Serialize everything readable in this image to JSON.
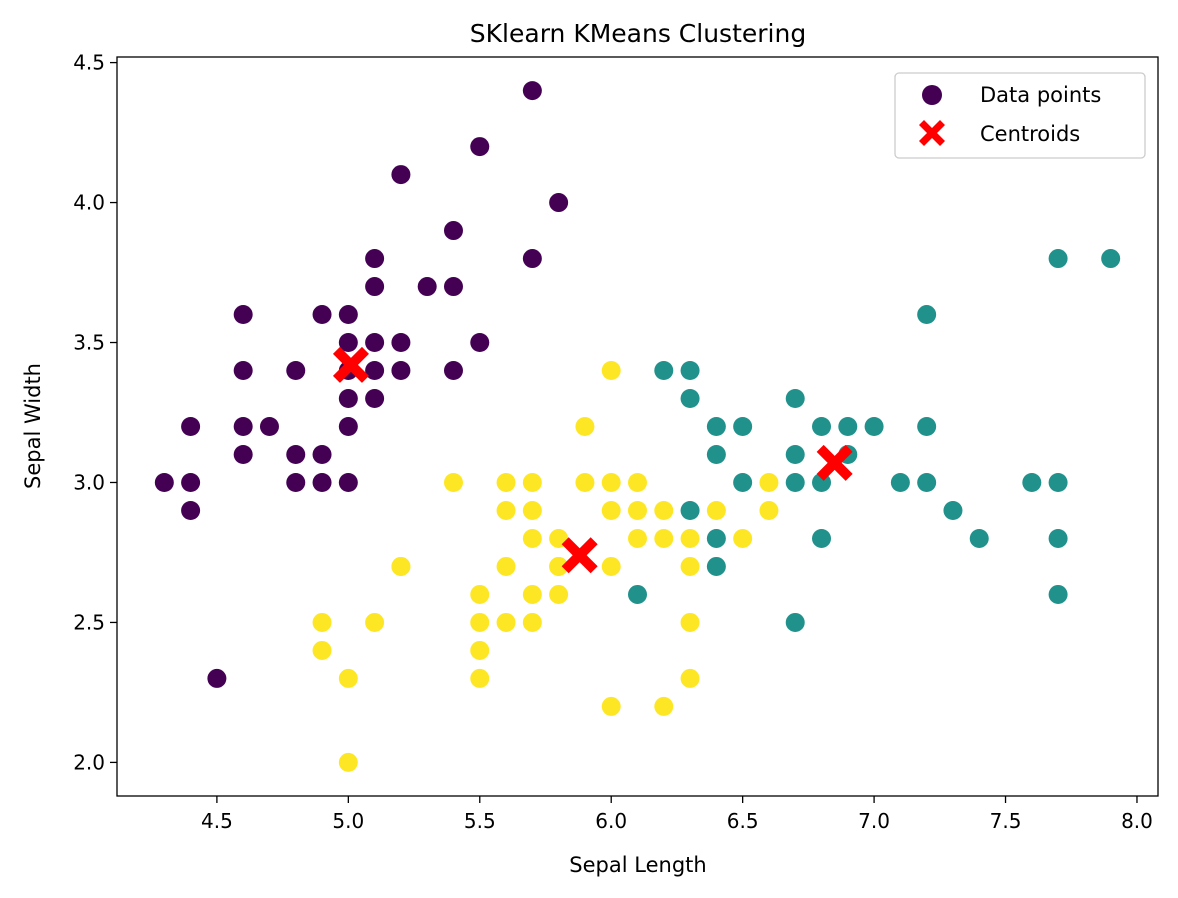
{
  "chart_data": {
    "type": "scatter",
    "title": "SKlearn KMeans Clustering",
    "xlabel": "Sepal Length",
    "ylabel": "Sepal Width",
    "xlim": [
      4.12,
      8.08
    ],
    "ylim": [
      1.88,
      4.52
    ],
    "xticks": [
      "4.5",
      "5.0",
      "5.5",
      "6.0",
      "6.5",
      "7.0",
      "7.5",
      "8.0"
    ],
    "yticks": [
      "2.0",
      "2.5",
      "3.0",
      "3.5",
      "4.0",
      "4.5"
    ],
    "grid": false,
    "legend": {
      "placement": "top-right",
      "entries": [
        "Data points",
        "Centroids"
      ]
    },
    "cluster_colors": {
      "0": "#440154",
      "1": "#21918c",
      "2": "#fde725"
    },
    "centroid_color": "#ff0000",
    "series": [
      {
        "name": "Data points",
        "marker": "circle",
        "points": [
          [
            5.1,
            3.5,
            0
          ],
          [
            4.9,
            3.0,
            0
          ],
          [
            4.7,
            3.2,
            0
          ],
          [
            4.6,
            3.1,
            0
          ],
          [
            5.0,
            3.6,
            0
          ],
          [
            5.4,
            3.9,
            0
          ],
          [
            4.6,
            3.4,
            0
          ],
          [
            5.0,
            3.4,
            0
          ],
          [
            4.4,
            2.9,
            0
          ],
          [
            4.9,
            3.1,
            0
          ],
          [
            5.4,
            3.7,
            0
          ],
          [
            4.8,
            3.4,
            0
          ],
          [
            4.8,
            3.0,
            0
          ],
          [
            4.3,
            3.0,
            0
          ],
          [
            5.8,
            4.0,
            0
          ],
          [
            5.7,
            4.4,
            0
          ],
          [
            5.7,
            3.8,
            0
          ],
          [
            5.1,
            3.8,
            0
          ],
          [
            5.4,
            3.4,
            0
          ],
          [
            5.1,
            3.7,
            0
          ],
          [
            4.6,
            3.6,
            0
          ],
          [
            5.1,
            3.3,
            0
          ],
          [
            5.0,
            3.0,
            0
          ],
          [
            5.0,
            3.2,
            0
          ],
          [
            5.2,
            3.5,
            0
          ],
          [
            5.2,
            3.4,
            0
          ],
          [
            4.8,
            3.1,
            0
          ],
          [
            5.2,
            4.1,
            0
          ],
          [
            5.5,
            4.2,
            0
          ],
          [
            5.5,
            3.5,
            0
          ],
          [
            4.4,
            3.0,
            0
          ],
          [
            4.5,
            2.3,
            0
          ],
          [
            4.4,
            3.2,
            0
          ],
          [
            4.9,
            3.6,
            0
          ],
          [
            5.3,
            3.7,
            0
          ],
          [
            5.0,
            3.3,
            0
          ],
          [
            4.6,
            3.2,
            0
          ],
          [
            5.1,
            3.4,
            0
          ],
          [
            5.0,
            3.5,
            0
          ],
          [
            7.0,
            3.2,
            1
          ],
          [
            6.9,
            3.1,
            1
          ],
          [
            6.3,
            3.3,
            1
          ],
          [
            6.7,
            3.1,
            1
          ],
          [
            6.3,
            2.9,
            1
          ],
          [
            6.1,
            2.6,
            1
          ],
          [
            6.8,
            2.8,
            1
          ],
          [
            6.7,
            3.0,
            1
          ],
          [
            6.4,
            2.8,
            1
          ],
          [
            7.1,
            3.0,
            1
          ],
          [
            6.5,
            3.0,
            1
          ],
          [
            7.6,
            3.0,
            1
          ],
          [
            7.3,
            2.9,
            1
          ],
          [
            6.7,
            2.5,
            1
          ],
          [
            7.2,
            3.6,
            1
          ],
          [
            6.4,
            2.7,
            1
          ],
          [
            6.8,
            3.0,
            1
          ],
          [
            7.7,
            3.8,
            1
          ],
          [
            7.7,
            2.6,
            1
          ],
          [
            6.9,
            3.2,
            1
          ],
          [
            7.7,
            2.8,
            1
          ],
          [
            7.2,
            3.2,
            1
          ],
          [
            7.2,
            3.0,
            1
          ],
          [
            7.4,
            2.8,
            1
          ],
          [
            7.9,
            3.8,
            1
          ],
          [
            6.3,
            3.4,
            1
          ],
          [
            7.7,
            3.0,
            1
          ],
          [
            6.4,
            3.1,
            1
          ],
          [
            6.2,
            3.4,
            1
          ],
          [
            6.8,
            3.2,
            1
          ],
          [
            6.7,
            3.3,
            1
          ],
          [
            6.5,
            3.2,
            1
          ],
          [
            6.4,
            3.2,
            1
          ],
          [
            5.4,
            3.0,
            2
          ],
          [
            5.2,
            2.7,
            2
          ],
          [
            5.6,
            3.0,
            2
          ],
          [
            5.8,
            2.7,
            2
          ],
          [
            5.6,
            2.5,
            2
          ],
          [
            5.9,
            3.2,
            2
          ],
          [
            6.0,
            3.4,
            2
          ],
          [
            6.1,
            3.0,
            2
          ],
          [
            6.6,
            3.0,
            2
          ],
          [
            6.6,
            2.9,
            2
          ],
          [
            5.9,
            3.0,
            2
          ],
          [
            6.0,
            3.0,
            2
          ],
          [
            5.7,
            2.8,
            2
          ],
          [
            5.7,
            2.9,
            2
          ],
          [
            5.8,
            2.8,
            2
          ],
          [
            6.5,
            2.8,
            2
          ],
          [
            6.4,
            2.9,
            2
          ],
          [
            6.3,
            2.8,
            2
          ],
          [
            6.2,
            2.9,
            2
          ],
          [
            6.1,
            2.8,
            2
          ],
          [
            6.0,
            2.9,
            2
          ],
          [
            6.1,
            2.9,
            2
          ],
          [
            5.6,
            2.9,
            2
          ],
          [
            5.7,
            2.6,
            2
          ],
          [
            5.5,
            2.6,
            2
          ],
          [
            5.8,
            2.6,
            2
          ],
          [
            6.0,
            2.7,
            2
          ],
          [
            6.3,
            2.7,
            2
          ],
          [
            5.5,
            2.5,
            2
          ],
          [
            5.6,
            2.7,
            2
          ],
          [
            5.7,
            2.5,
            2
          ],
          [
            5.2,
            2.7,
            2
          ],
          [
            5.1,
            2.5,
            2
          ],
          [
            4.9,
            2.5,
            2
          ],
          [
            4.9,
            2.4,
            2
          ],
          [
            5.0,
            2.3,
            2
          ],
          [
            5.5,
            2.4,
            2
          ],
          [
            5.5,
            2.3,
            2
          ],
          [
            6.3,
            2.5,
            2
          ],
          [
            6.3,
            2.3,
            2
          ],
          [
            6.0,
            2.2,
            2
          ],
          [
            6.2,
            2.2,
            2
          ],
          [
            5.0,
            2.0,
            2
          ],
          [
            5.8,
            2.7,
            2
          ],
          [
            5.7,
            3.0,
            2
          ],
          [
            6.2,
            2.8,
            2
          ]
        ]
      },
      {
        "name": "Centroids",
        "marker": "x",
        "points": [
          [
            5.01,
            3.42
          ],
          [
            5.88,
            2.74
          ],
          [
            6.85,
            3.07
          ]
        ]
      }
    ]
  }
}
